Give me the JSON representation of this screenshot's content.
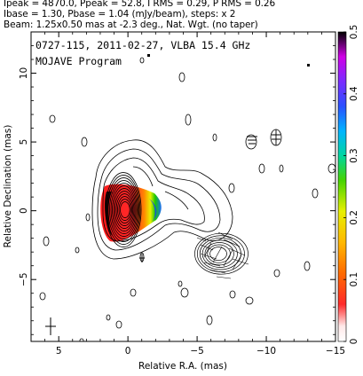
{
  "header": {
    "line1": "Ipeak = 4870.0, Ppeak = 52.8, I RMS = 0.29, P RMS = 0.26",
    "line2": "Ibase = 1.30, Pbase = 1.04 (mJy/beam), steps: x 2",
    "line3": "Beam: 1.25x0.50 mas at -2.3 deg., Nat. Wgt. (no taper)"
  },
  "chart_data": {
    "type": "heatmap",
    "title": "0727-115, 2011-02-27, VLBA 15.4 GHz",
    "subtitle": "MOJAVE Program",
    "xlabel": "Relative R.A. (mas)",
    "ylabel": "Relative Declination (mas)",
    "xlim": [
      7,
      -15
    ],
    "ylim": [
      -9.5,
      13
    ],
    "xticks": [
      5,
      0,
      -5,
      -10,
      -15
    ],
    "xtick_labels": [
      "5",
      "0",
      "−5",
      "−10",
      "−15"
    ],
    "yticks": [
      -5,
      0,
      5,
      10
    ],
    "ytick_labels": [
      "−5",
      "0",
      "5",
      "10"
    ],
    "colorbar": {
      "min": 0,
      "max": 0.5,
      "ticks": [
        0,
        0.1,
        0.2,
        0.3,
        0.4,
        0.5
      ],
      "tick_labels": [
        "0",
        "0.1",
        "0.2",
        "0.3",
        "0.4",
        "0.5"
      ]
    },
    "core": {
      "x": 0.2,
      "y": 0.2
    },
    "secondary_component": {
      "x": -6.5,
      "y": -3.0
    },
    "contour_levels_mJy_beam": [
      1.3,
      2.6,
      5.2,
      10.4,
      20.8,
      41.6,
      83.2,
      166.4,
      332.8,
      665.6,
      1331.2,
      2662.4
    ]
  }
}
